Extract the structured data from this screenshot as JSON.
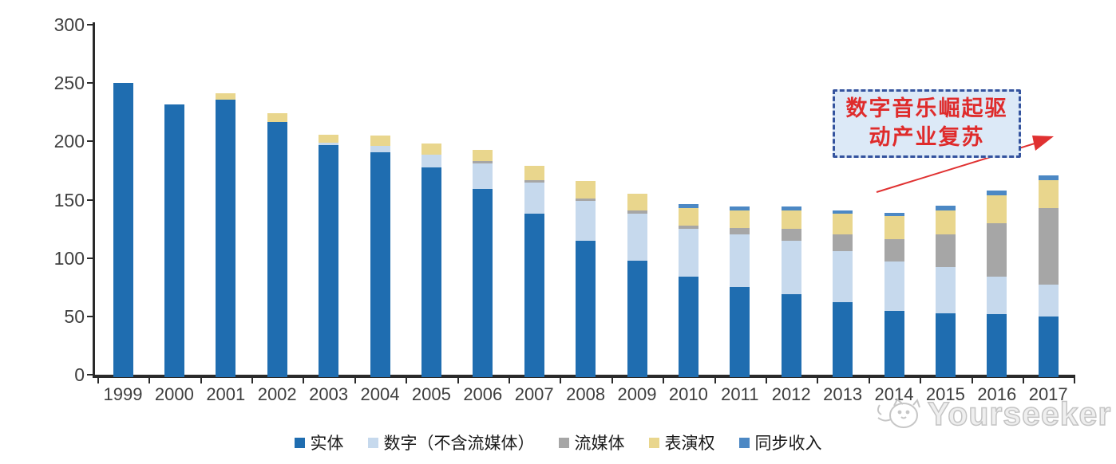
{
  "chart_data": {
    "type": "bar",
    "stacked": true,
    "title": "",
    "xlabel": "",
    "ylabel": "",
    "ylim": [
      0,
      300
    ],
    "yticks": [
      0,
      50,
      100,
      150,
      200,
      250,
      300
    ],
    "grid": false,
    "legend_position": "bottom",
    "categories": [
      "1999",
      "2000",
      "2001",
      "2002",
      "2003",
      "2004",
      "2005",
      "2006",
      "2007",
      "2008",
      "2009",
      "2010",
      "2011",
      "2012",
      "2013",
      "2014",
      "2015",
      "2016",
      "2017"
    ],
    "series": [
      {
        "name": "实体",
        "color": "#1f6db0",
        "values": [
          252,
          234,
          238,
          219,
          199,
          193,
          180,
          161,
          140,
          117,
          100,
          86,
          77,
          71,
          64,
          57,
          55,
          54,
          52
        ]
      },
      {
        "name": "数字（不含流媒体）",
        "color": "#c6d9ed",
        "values": [
          0,
          0,
          0,
          0,
          2,
          5,
          11,
          22,
          27,
          34,
          40,
          41,
          45,
          46,
          44,
          42,
          39,
          32,
          27
        ]
      },
      {
        "name": "流媒体",
        "color": "#a6a6a6",
        "values": [
          0,
          0,
          0,
          0,
          0,
          0,
          0,
          2,
          2,
          2,
          3,
          3,
          6,
          10,
          14,
          19,
          28,
          46,
          66
        ]
      },
      {
        "name": "表演权",
        "color": "#e9d68d",
        "values": [
          0,
          0,
          5,
          7,
          7,
          9,
          9,
          10,
          12,
          15,
          14,
          15,
          15,
          16,
          18,
          20,
          21,
          24,
          24
        ]
      },
      {
        "name": "同步收入",
        "color": "#4c88c4",
        "values": [
          0,
          0,
          0,
          0,
          0,
          0,
          0,
          0,
          0,
          0,
          0,
          3,
          3,
          3,
          3,
          3,
          4,
          4,
          4
        ]
      }
    ]
  },
  "annotation": {
    "line1": "数字音乐崛起驱",
    "line2": "动产业复苏",
    "text_color": "#df2b2b",
    "box_fill": "#dce9f7",
    "box_border": "#34539e",
    "arrow_color": "#e03131"
  },
  "watermark": {
    "text": "Yourseeker",
    "icon": "cat-logo-icon"
  }
}
